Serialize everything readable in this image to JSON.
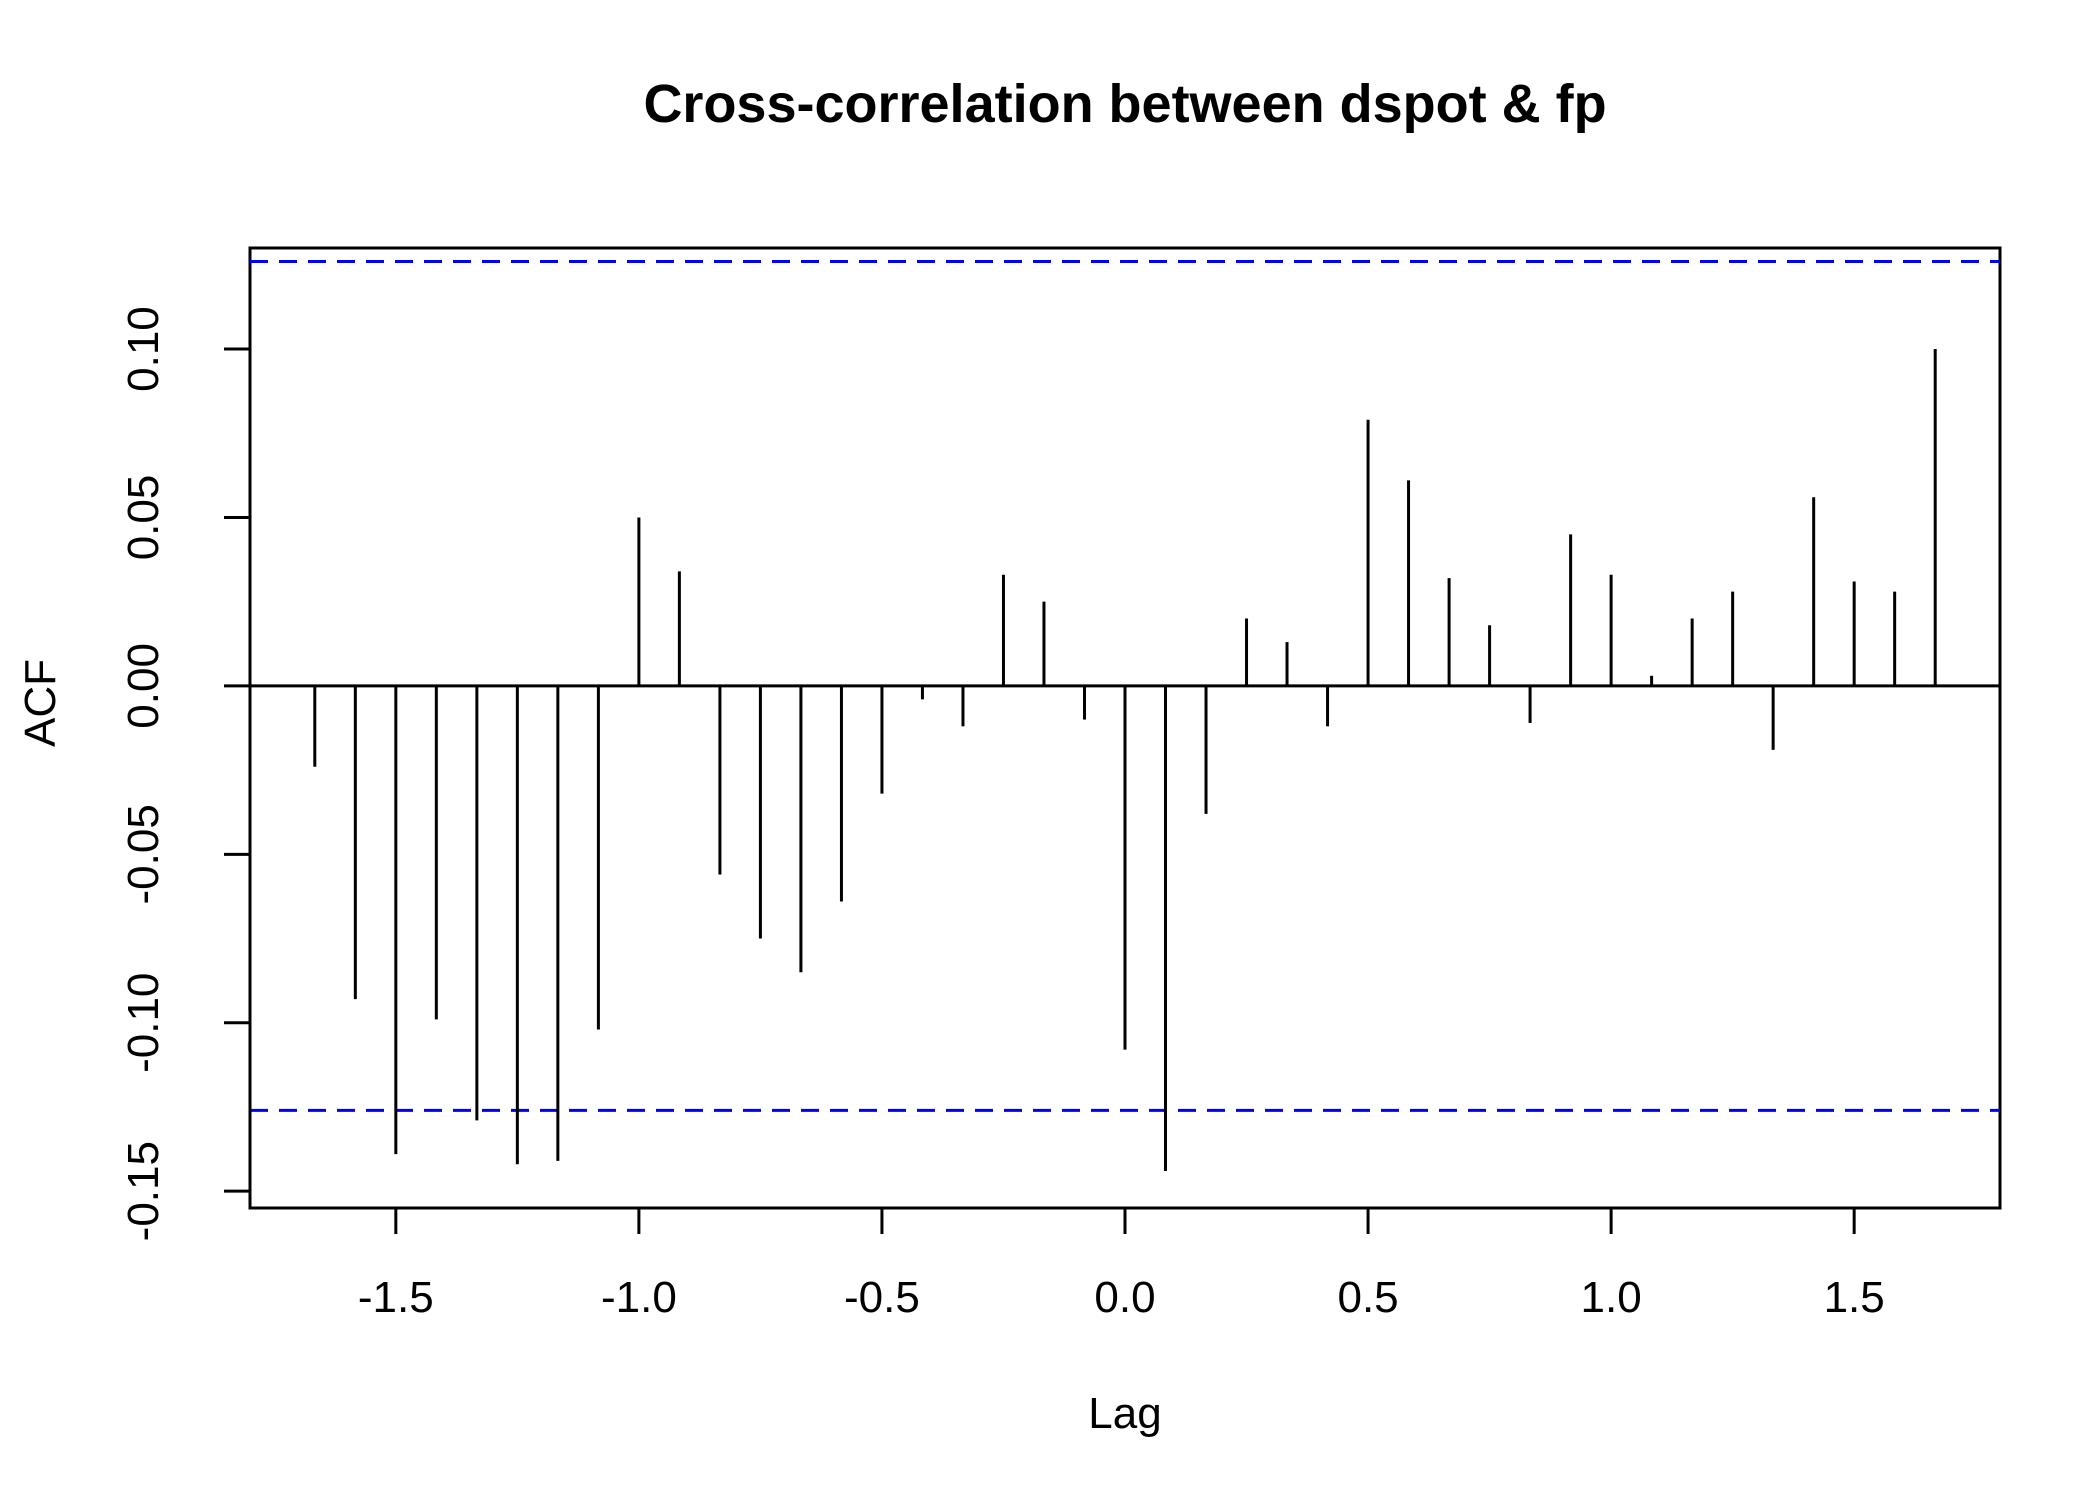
{
  "chart_data": {
    "type": "bar",
    "title": "Cross-correlation between dspot & fp",
    "xlabel": "Lag",
    "ylabel": "ACF",
    "xlim": [
      -1.8,
      1.8
    ],
    "ylim": [
      -0.155,
      0.13
    ],
    "x_ticks": [
      "-1.5",
      "-1.0",
      "-0.5",
      "0.0",
      "0.5",
      "1.0",
      "1.5"
    ],
    "y_ticks": [
      "-0.15",
      "-0.10",
      "-0.05",
      "0.00",
      "0.05",
      "0.10"
    ],
    "x_tick_values": [
      -1.5,
      -1.0,
      -0.5,
      0.0,
      0.5,
      1.0,
      1.5
    ],
    "y_tick_values": [
      -0.15,
      -0.1,
      -0.05,
      0.0,
      0.05,
      0.1
    ],
    "confidence_band": [
      -0.126,
      0.126
    ],
    "colors": {
      "bars": "#000000",
      "confidence_lines": "#0000ff",
      "axis": "#000000"
    },
    "series": [
      {
        "x": [
          -1.6667,
          -1.5833,
          -1.5,
          -1.4167,
          -1.3333,
          -1.25,
          -1.1667,
          -1.0833,
          -1.0,
          -0.9167,
          -0.8333,
          -0.75,
          -0.6667,
          -0.5833,
          -0.5,
          -0.4167,
          -0.3333,
          -0.25,
          -0.1667,
          -0.0833,
          0.0,
          0.0833,
          0.1667,
          0.25,
          0.3333,
          0.4167,
          0.5,
          0.5833,
          0.6667,
          0.75,
          0.8333,
          0.9167,
          1.0,
          1.0833,
          1.1667,
          1.25,
          1.3333,
          1.4167,
          1.5,
          1.5833,
          1.6667
        ],
        "values": [
          -0.024,
          -0.093,
          -0.139,
          -0.099,
          -0.129,
          -0.142,
          -0.141,
          -0.102,
          0.05,
          0.034,
          -0.056,
          -0.075,
          -0.085,
          -0.064,
          -0.032,
          -0.004,
          -0.012,
          0.033,
          0.025,
          -0.01,
          -0.108,
          -0.144,
          -0.038,
          0.02,
          0.013,
          -0.012,
          0.079,
          0.061,
          0.032,
          0.018,
          -0.011,
          0.045,
          0.033,
          0.003,
          0.02,
          0.028,
          -0.019,
          0.056,
          0.031,
          0.028,
          0.1
        ]
      }
    ]
  }
}
